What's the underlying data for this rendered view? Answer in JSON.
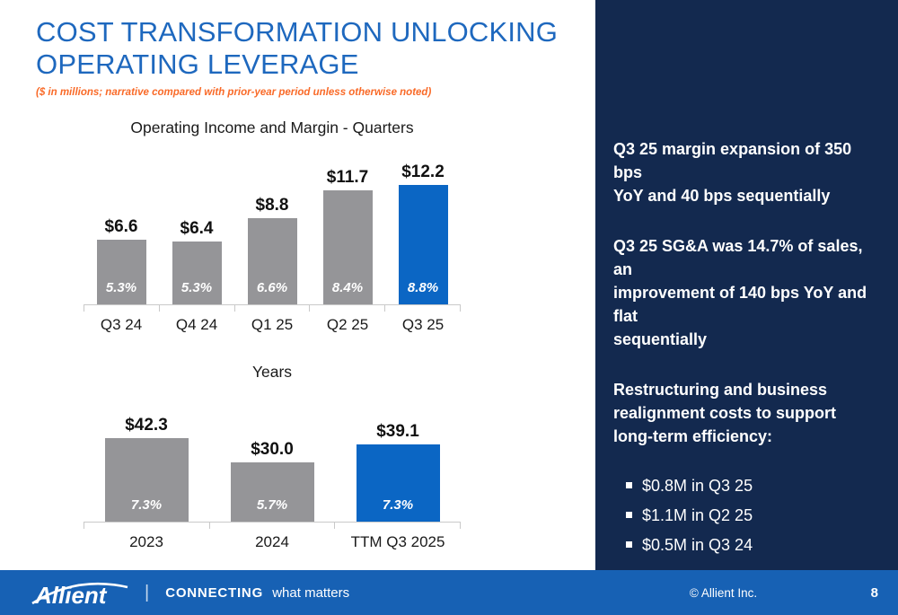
{
  "slide": {
    "title": "COST TRANSFORMATION UNLOCKING\nOPERATING LEVERAGE",
    "subtitle": "($ in millions; narrative compared with prior-year period unless otherwise noted)"
  },
  "colors": {
    "title_blue": "#1E68BE",
    "subtitle_orange": "#F96A28",
    "bar_gray": "#959598",
    "bar_blue": "#0B66C4",
    "sidebar_navy": "#13294F",
    "footer_blue": "#1761B4",
    "axis_gray": "#C9C9C9"
  },
  "chart_data": [
    {
      "type": "bar",
      "title": "Operating Income and Margin - Quarters",
      "categories": [
        "Q3 24",
        "Q4 24",
        "Q1 25",
        "Q2 25",
        "Q3 25"
      ],
      "values": [
        6.6,
        6.4,
        8.8,
        11.7,
        12.2
      ],
      "value_labels": [
        "$6.6",
        "$6.4",
        "$8.8",
        "$11.7",
        "$12.2"
      ],
      "margin_labels": [
        "5.3%",
        "5.3%",
        "6.6%",
        "8.4%",
        "8.8%"
      ],
      "highlight_index": 4,
      "ylim": [
        0,
        13.5
      ],
      "legend": "none",
      "grid": false
    },
    {
      "type": "bar",
      "title": "Years",
      "categories": [
        "2023",
        "2024",
        "TTM Q3 2025"
      ],
      "values": [
        42.3,
        30.0,
        39.1
      ],
      "value_labels": [
        "$42.3",
        "$30.0",
        "$39.1"
      ],
      "margin_labels": [
        "7.3%",
        "5.7%",
        "7.3%"
      ],
      "highlight_index": 2,
      "ylim": [
        0,
        46
      ],
      "legend": "none",
      "grid": false
    }
  ],
  "sidebar": {
    "paragraphs": [
      "Q3 25 margin expansion of 350 bps\nYoY and 40 bps sequentially",
      "Q3 25 SG&A was 14.7% of sales, an\nimprovement of 140 bps YoY and flat\nsequentially",
      "Restructuring and business\nrealignment costs to support\nlong-term efficiency:"
    ],
    "bullets": [
      "$0.8M in Q3 25",
      "$1.1M in Q2 25",
      "$0.5M in Q3 24"
    ]
  },
  "footer": {
    "logo_text": "Allient",
    "separator": "|",
    "tagline_bold": "CONNECTING",
    "tagline_rest": "what matters",
    "copyright": "© Allient Inc.",
    "page_number": "8"
  }
}
